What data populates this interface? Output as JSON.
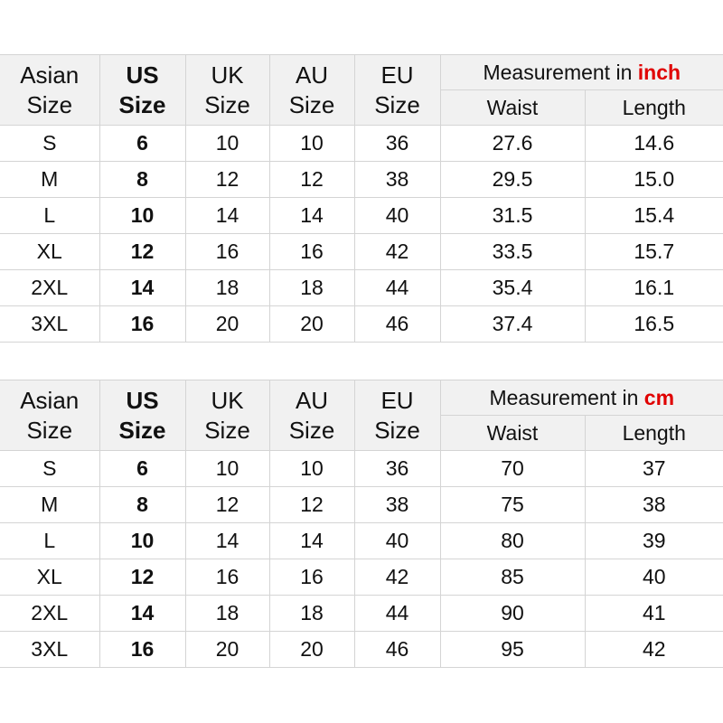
{
  "headers": {
    "asian": [
      "Asian",
      "Size"
    ],
    "us": [
      "US",
      "Size"
    ],
    "uk": [
      "UK",
      "Size"
    ],
    "au": [
      "AU",
      "Size"
    ],
    "eu": [
      "EU",
      "Size"
    ],
    "measurement_prefix": "Measurement in ",
    "waist": "Waist",
    "length": "Length"
  },
  "accent_color": "#e00000",
  "tables": [
    {
      "unit": "inch",
      "rows": [
        [
          "S",
          "6",
          "10",
          "10",
          "36",
          "27.6",
          "14.6"
        ],
        [
          "M",
          "8",
          "12",
          "12",
          "38",
          "29.5",
          "15.0"
        ],
        [
          "L",
          "10",
          "14",
          "14",
          "40",
          "31.5",
          "15.4"
        ],
        [
          "XL",
          "12",
          "16",
          "16",
          "42",
          "33.5",
          "15.7"
        ],
        [
          "2XL",
          "14",
          "18",
          "18",
          "44",
          "35.4",
          "16.1"
        ],
        [
          "3XL",
          "16",
          "20",
          "20",
          "46",
          "37.4",
          "16.5"
        ]
      ]
    },
    {
      "unit": "cm",
      "rows": [
        [
          "S",
          "6",
          "10",
          "10",
          "36",
          "70",
          "37"
        ],
        [
          "M",
          "8",
          "12",
          "12",
          "38",
          "75",
          "38"
        ],
        [
          "L",
          "10",
          "14",
          "14",
          "40",
          "80",
          "39"
        ],
        [
          "XL",
          "12",
          "16",
          "16",
          "42",
          "85",
          "40"
        ],
        [
          "2XL",
          "14",
          "18",
          "18",
          "44",
          "90",
          "41"
        ],
        [
          "3XL",
          "16",
          "20",
          "20",
          "46",
          "95",
          "42"
        ]
      ]
    }
  ]
}
